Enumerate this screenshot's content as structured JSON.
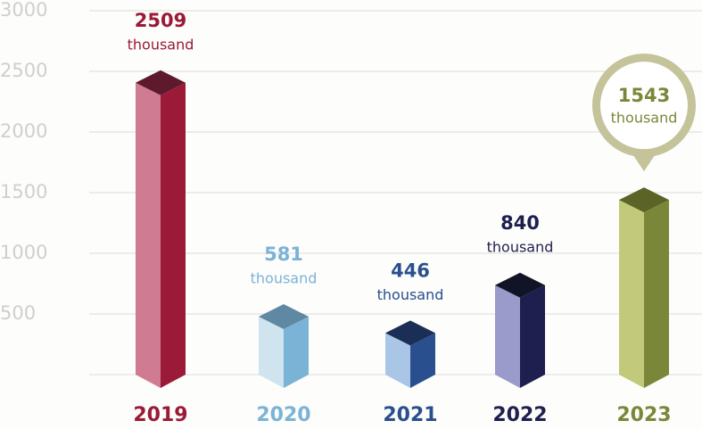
{
  "chart_data": {
    "type": "bar3d",
    "categories": [
      "2019",
      "2020",
      "2021",
      "2022",
      "2023"
    ],
    "values": [
      2509,
      581,
      446,
      840,
      1543
    ],
    "value_unit": "thousand",
    "colors": [
      {
        "front": "#cf7b91",
        "side": "#9a1a37",
        "top": "#5e1a2c"
      },
      {
        "front": "#cfe4ef",
        "side": "#7ab3d6",
        "top": "#5f88a3"
      },
      {
        "front": "#a9c6e6",
        "side": "#2a4f8f",
        "top": "#1b2e56"
      },
      {
        "front": "#9a9acb",
        "side": "#1e1f4f",
        "top": "#111427"
      },
      {
        "front": "#c2c97a",
        "side": "#7b8738",
        "top": "#5b6326"
      }
    ],
    "highlight": 4,
    "ylim": [
      0,
      3000
    ],
    "yticks": [
      500,
      1000,
      1500,
      2000,
      2500,
      3000
    ],
    "grid": true
  }
}
